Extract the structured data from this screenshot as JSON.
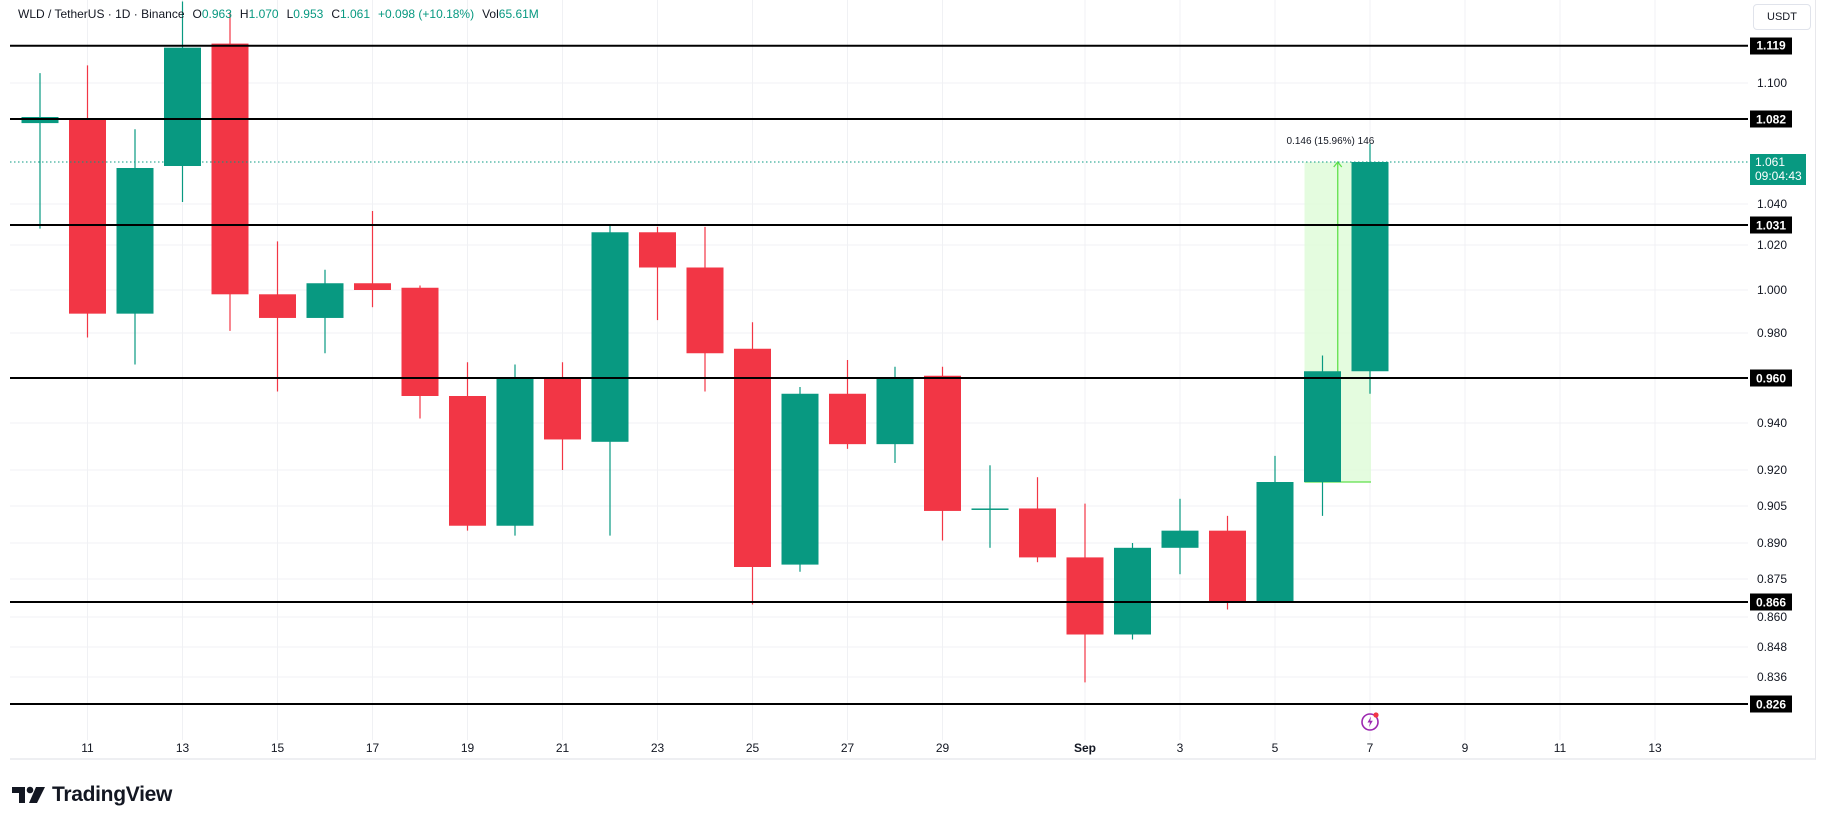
{
  "header": {
    "symbol": "WLD / TetherUS · 1D · Binance",
    "open_key": "O",
    "open": "0.963",
    "high_key": "H",
    "high": "1.070",
    "low_key": "L",
    "low": "0.953",
    "close_key": "C",
    "close": "1.061",
    "change": "+0.098 (+10.18%)",
    "vol_key": "Vol",
    "vol": "65.61M"
  },
  "currency_button": "USDT",
  "branding": {
    "logo_text": "TradingView"
  },
  "colors": {
    "up": "#089981",
    "down": "#F23645",
    "level_line": "#000000",
    "grid": "#F0F1F4",
    "measure_fill": "#DFFCD9",
    "measure_line": "#5FE04A",
    "event": "#9C27B0"
  },
  "price_axis": {
    "tick_labels": [
      "1.100",
      "1.040",
      "1.020",
      "1.000",
      "0.980",
      "0.940",
      "0.920",
      "0.905",
      "0.890",
      "0.875",
      "0.860",
      "0.848",
      "0.836"
    ],
    "level_badges": [
      "1.119",
      "1.082",
      "1.031",
      "0.960",
      "0.866",
      "0.826"
    ],
    "last_price": "1.061",
    "countdown": "09:04:43"
  },
  "time_axis": {
    "labels": [
      "11",
      "13",
      "15",
      "17",
      "19",
      "21",
      "23",
      "25",
      "27",
      "29",
      "Sep",
      "3",
      "5",
      "7",
      "9",
      "11",
      "13"
    ]
  },
  "measurement": {
    "label": "0.146 (15.96%) 146"
  },
  "chart_data": {
    "type": "candlestick",
    "title": "WLD / TetherUS · 1D · Binance",
    "xlabel": "",
    "ylabel": "USDT",
    "ylim": [
      0.826,
      1.125
    ],
    "grid": true,
    "x": [
      "Aug 10",
      "Aug 11",
      "Aug 12",
      "Aug 13",
      "Aug 14",
      "Aug 15",
      "Aug 16",
      "Aug 17",
      "Aug 18",
      "Aug 19",
      "Aug 20",
      "Aug 21",
      "Aug 22",
      "Aug 23",
      "Aug 24",
      "Aug 25",
      "Aug 26",
      "Aug 27",
      "Aug 28",
      "Aug 29",
      "Aug 30",
      "Aug 31",
      "Sep 1",
      "Sep 2",
      "Sep 3",
      "Sep 4",
      "Sep 5",
      "Sep 6",
      "Sep 7"
    ],
    "candles": [
      {
        "o": 1.08,
        "h": 1.105,
        "l": 1.029,
        "c": 1.083
      },
      {
        "o": 1.082,
        "h": 1.109,
        "l": 0.978,
        "c": 0.989
      },
      {
        "o": 0.989,
        "h": 1.077,
        "l": 0.966,
        "c": 1.058
      },
      {
        "o": 1.059,
        "h": 1.14,
        "l": 1.041,
        "c": 1.118
      },
      {
        "o": 1.12,
        "h": 1.135,
        "l": 0.981,
        "c": 0.998
      },
      {
        "o": 0.998,
        "h": 1.022,
        "l": 0.954,
        "c": 0.987
      },
      {
        "o": 0.987,
        "h": 1.009,
        "l": 0.971,
        "c": 1.003
      },
      {
        "o": 1.003,
        "h": 1.037,
        "l": 0.992,
        "c": 1.0
      },
      {
        "o": 1.001,
        "h": 1.002,
        "l": 0.942,
        "c": 0.952
      },
      {
        "o": 0.952,
        "h": 0.967,
        "l": 0.895,
        "c": 0.897
      },
      {
        "o": 0.897,
        "h": 0.966,
        "l": 0.893,
        "c": 0.96
      },
      {
        "o": 0.96,
        "h": 0.967,
        "l": 0.92,
        "c": 0.933
      },
      {
        "o": 0.932,
        "h": 1.031,
        "l": 0.893,
        "c": 1.027
      },
      {
        "o": 1.027,
        "h": 1.03,
        "l": 0.986,
        "c": 1.01
      },
      {
        "o": 1.01,
        "h": 1.03,
        "l": 0.954,
        "c": 0.971
      },
      {
        "o": 0.973,
        "h": 0.985,
        "l": 0.865,
        "c": 0.88
      },
      {
        "o": 0.881,
        "h": 0.956,
        "l": 0.878,
        "c": 0.953
      },
      {
        "o": 0.953,
        "h": 0.968,
        "l": 0.929,
        "c": 0.931
      },
      {
        "o": 0.931,
        "h": 0.965,
        "l": 0.923,
        "c": 0.96
      },
      {
        "o": 0.961,
        "h": 0.965,
        "l": 0.891,
        "c": 0.903
      },
      {
        "o": 0.904,
        "h": 0.922,
        "l": 0.888,
        "c": 0.904
      },
      {
        "o": 0.904,
        "h": 0.917,
        "l": 0.882,
        "c": 0.884
      },
      {
        "o": 0.884,
        "h": 0.906,
        "l": 0.834,
        "c": 0.853
      },
      {
        "o": 0.853,
        "h": 0.89,
        "l": 0.851,
        "c": 0.888
      },
      {
        "o": 0.888,
        "h": 0.908,
        "l": 0.877,
        "c": 0.895
      },
      {
        "o": 0.895,
        "h": 0.901,
        "l": 0.863,
        "c": 0.866
      },
      {
        "o": 0.866,
        "h": 0.926,
        "l": 0.866,
        "c": 0.915
      },
      {
        "o": 0.915,
        "h": 0.97,
        "l": 0.901,
        "c": 0.963
      },
      {
        "o": 0.963,
        "h": 1.07,
        "l": 0.953,
        "c": 1.061
      }
    ],
    "horizontal_levels": [
      1.119,
      1.082,
      1.031,
      0.96,
      0.866,
      0.826
    ],
    "last_price": 1.061,
    "measurement": {
      "from_index": 27,
      "to_index": 28,
      "from_price": 0.915,
      "to_price": 1.061,
      "delta": 0.146,
      "percent": 15.96,
      "bars": 146
    }
  }
}
